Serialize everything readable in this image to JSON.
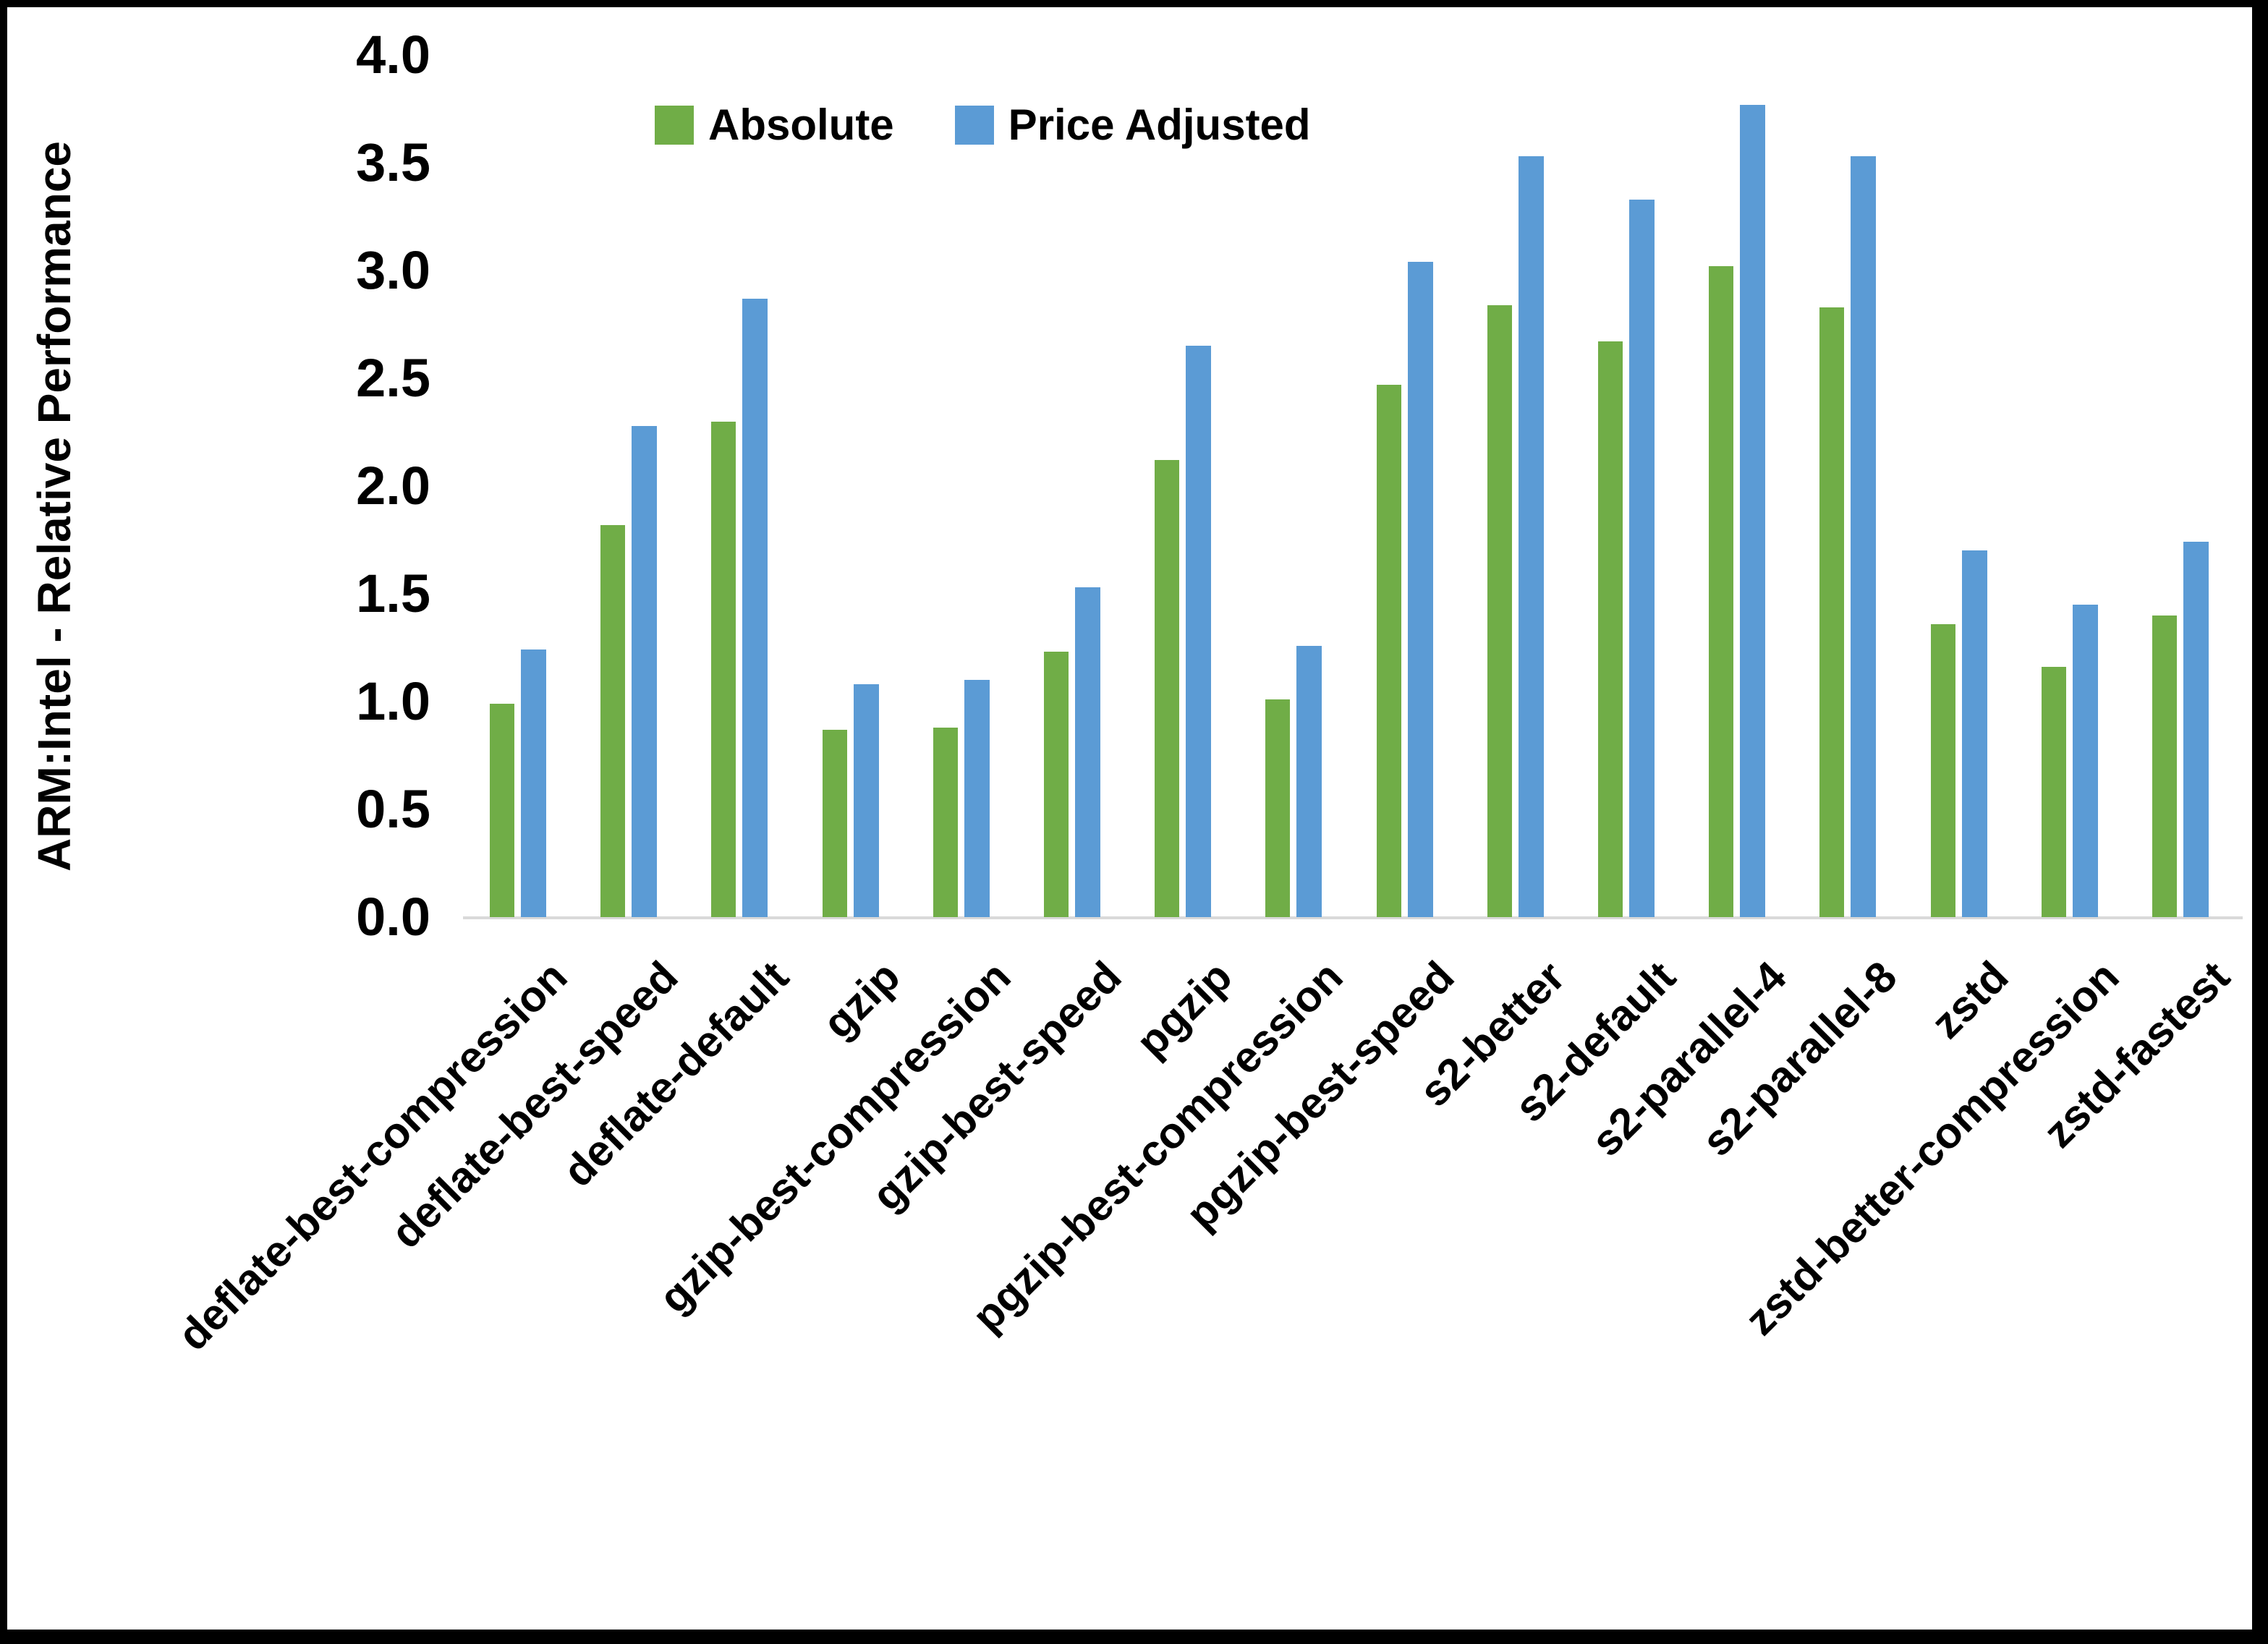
{
  "chart_data": {
    "type": "bar",
    "title": "",
    "xlabel": "",
    "ylabel": "ARM:Intel - Relative Performance",
    "ylim": [
      0.0,
      4.0
    ],
    "ytick_step": 0.5,
    "yticks": [
      "0.0",
      "0.5",
      "1.0",
      "1.5",
      "2.0",
      "2.5",
      "3.0",
      "3.5",
      "4.0"
    ],
    "grid": false,
    "legend_position": "top-center",
    "categories": [
      "deflate-best-compression",
      "deflate-best-speed",
      "deflate-default",
      "gzip",
      "gzip-best-compression",
      "gzip-best-speed",
      "pgzip",
      "pgzip-best-compression",
      "pgzip-best-speed",
      "s2-better",
      "s2-default",
      "s2-parallel-4",
      "s2-parallel-8",
      "zstd",
      "zstd-better-compression",
      "zstd-fastest"
    ],
    "series": [
      {
        "name": "Absolute",
        "color": "#70AD47",
        "values": [
          0.99,
          1.82,
          2.3,
          0.87,
          0.88,
          1.23,
          2.12,
          1.01,
          2.47,
          2.84,
          2.67,
          3.02,
          2.83,
          1.36,
          1.16,
          1.4
        ]
      },
      {
        "name": "Price Adjusted",
        "color": "#5B9BD5",
        "values": [
          1.24,
          2.28,
          2.87,
          1.08,
          1.1,
          1.53,
          2.65,
          1.26,
          3.04,
          3.53,
          3.33,
          3.77,
          3.53,
          1.7,
          1.45,
          1.74
        ]
      }
    ]
  },
  "colors": {
    "background": "#FFFFFF",
    "frame": "#000000",
    "axis_line": "#D9D9D9",
    "text": "#000000"
  }
}
